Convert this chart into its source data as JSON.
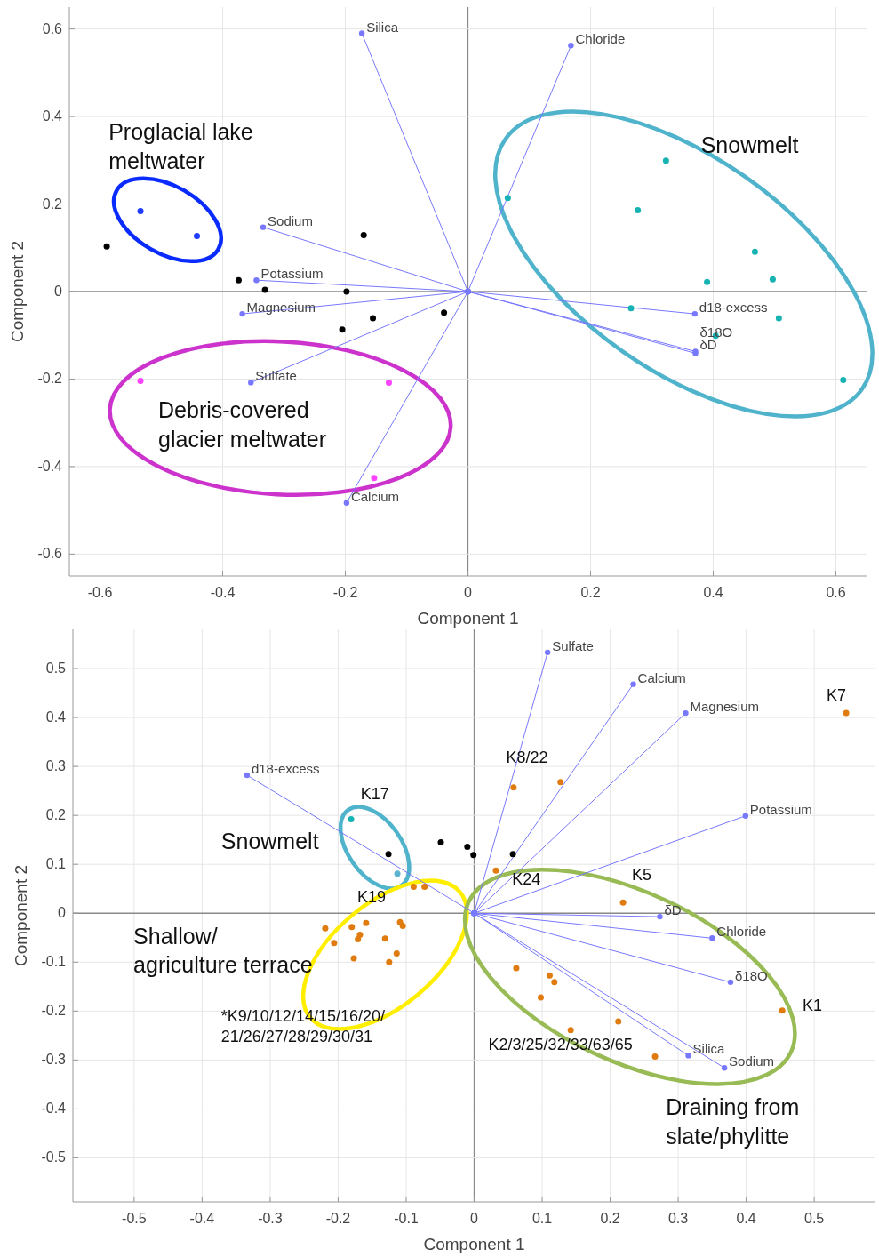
{
  "chart_data": [
    {
      "type": "scatter",
      "xlabel": "Component 1",
      "ylabel": "Component 2",
      "xlim": [
        -0.65,
        0.65
      ],
      "ylim": [
        -0.65,
        0.65
      ],
      "xticks": [
        -0.6,
        -0.4,
        -0.2,
        0,
        0.2,
        0.4,
        0.6
      ],
      "yticks": [
        -0.6,
        -0.4,
        -0.2,
        0,
        0.2,
        0.4,
        0.6
      ],
      "grid": true,
      "marker": "circle",
      "series": [
        {
          "type": "line",
          "name": "Silica",
          "color": "#7878ff",
          "x": [
            0,
            -0.173
          ],
          "values": [
            0,
            0.59
          ]
        },
        {
          "type": "line",
          "name": "Chloride",
          "color": "#7878ff",
          "x": [
            0,
            0.168
          ],
          "values": [
            0,
            0.562
          ]
        },
        {
          "type": "line",
          "name": "Sodium",
          "color": "#7878ff",
          "x": [
            0,
            -0.334
          ],
          "values": [
            0,
            0.147
          ]
        },
        {
          "type": "line",
          "name": "Potassium",
          "color": "#7878ff",
          "x": [
            0,
            -0.345
          ],
          "values": [
            0,
            0.026
          ]
        },
        {
          "type": "line",
          "name": "Magnesium",
          "color": "#7878ff",
          "x": [
            0,
            -0.368
          ],
          "values": [
            0,
            -0.051
          ]
        },
        {
          "type": "line",
          "name": "Sulfate",
          "color": "#7878ff",
          "x": [
            0,
            -0.354
          ],
          "values": [
            0,
            -0.208
          ]
        },
        {
          "type": "line",
          "name": "Calcium",
          "color": "#7878ff",
          "x": [
            0,
            -0.198
          ],
          "values": [
            0,
            -0.483
          ]
        },
        {
          "type": "line",
          "name": "d18-excess",
          "color": "#7878ff",
          "x": [
            0,
            0.37
          ],
          "values": [
            0,
            -0.051
          ]
        },
        {
          "type": "line",
          "name": "δD",
          "color": "#7878ff",
          "x": [
            0,
            0.371
          ],
          "values": [
            0,
            -0.137
          ]
        },
        {
          "type": "line",
          "name": "δ18O",
          "color": "#7878ff",
          "x": [
            0,
            0.371
          ],
          "values": [
            0,
            -0.141
          ]
        },
        {
          "color": "#1f3cff",
          "x": [
            -0.534,
            -0.442
          ],
          "values": [
            0.184,
            0.127
          ]
        },
        {
          "color": "#000000",
          "x": [
            -0.589,
            -0.17,
            -0.374,
            -0.331,
            -0.198,
            -0.155,
            -0.039,
            -0.205
          ],
          "values": [
            0.103,
            0.129,
            0.026,
            0.004,
            0.0,
            -0.061,
            -0.048,
            -0.087
          ]
        },
        {
          "color": "#ff44ff",
          "x": [
            -0.534,
            -0.129,
            -0.153
          ],
          "values": [
            -0.204,
            -0.208,
            -0.426
          ]
        },
        {
          "color": "#17b3b3",
          "x": [
            0.065,
            0.323,
            0.277,
            0.468,
            0.39,
            0.497,
            0.266,
            0.507,
            0.404,
            0.612
          ],
          "values": [
            0.214,
            0.299,
            0.186,
            0.091,
            0.022,
            0.028,
            -0.038,
            -0.061,
            -0.101,
            -0.202
          ]
        }
      ],
      "annotations": [
        "Proglacial lake\nmeltwater",
        "Snowmelt",
        "Debris-covered\nglacier meltwater"
      ]
    },
    {
      "type": "scatter",
      "xlabel": "Component 1",
      "ylabel": "Component 2",
      "xlim": [
        -0.59,
        0.59
      ],
      "ylim": [
        -0.59,
        0.58
      ],
      "xticks": [
        -0.5,
        -0.4,
        -0.3,
        -0.2,
        -0.1,
        0,
        0.1,
        0.2,
        0.3,
        0.4,
        0.5
      ],
      "yticks": [
        -0.5,
        -0.4,
        -0.3,
        -0.2,
        -0.1,
        0,
        0.1,
        0.2,
        0.3,
        0.4,
        0.5
      ],
      "grid": true,
      "marker": "circle",
      "series": [
        {
          "type": "line",
          "name": "Sulfate",
          "color": "#7878ff",
          "x": [
            0,
            0.108
          ],
          "values": [
            0,
            0.533
          ]
        },
        {
          "type": "line",
          "name": "Calcium",
          "color": "#7878ff",
          "x": [
            0,
            0.234
          ],
          "values": [
            0,
            0.468
          ]
        },
        {
          "type": "line",
          "name": "Magnesium",
          "color": "#7878ff",
          "x": [
            0,
            0.311
          ],
          "values": [
            0,
            0.409
          ]
        },
        {
          "type": "line",
          "name": "Potassium",
          "color": "#7878ff",
          "x": [
            0,
            0.399
          ],
          "values": [
            0,
            0.199
          ]
        },
        {
          "type": "line",
          "name": "d18-excess",
          "color": "#7878ff",
          "x": [
            0,
            -0.334
          ],
          "values": [
            0,
            0.282
          ]
        },
        {
          "type": "line",
          "name": "δD",
          "color": "#7878ff",
          "x": [
            0,
            0.273
          ],
          "values": [
            0,
            -0.007
          ]
        },
        {
          "type": "line",
          "name": "Chloride",
          "color": "#7878ff",
          "x": [
            0,
            0.35
          ],
          "values": [
            0,
            -0.051
          ]
        },
        {
          "type": "line",
          "name": "δ18O",
          "color": "#7878ff",
          "x": [
            0,
            0.377
          ],
          "values": [
            0,
            -0.141
          ]
        },
        {
          "type": "line",
          "name": "Silica",
          "color": "#7878ff",
          "x": [
            0,
            0.315
          ],
          "values": [
            0,
            -0.291
          ]
        },
        {
          "type": "line",
          "name": "Sodium",
          "color": "#7878ff",
          "x": [
            0,
            0.368
          ],
          "values": [
            0,
            -0.316
          ]
        },
        {
          "color": "#17b3b3",
          "x": [
            -0.181
          ],
          "values": [
            0.192
          ]
        },
        {
          "color": "#5ab4d0",
          "x": [
            -0.113
          ],
          "values": [
            0.081
          ]
        },
        {
          "color": "#000000",
          "x": [
            -0.126,
            -0.049,
            -0.01,
            -0.001,
            0.057
          ],
          "values": [
            0.121,
            0.145,
            0.136,
            0.119,
            0.121
          ]
        },
        {
          "color": "#e07b10",
          "x": [
            0.547,
            0.058,
            0.127,
            0.032,
            0.219,
            0.453,
            0.062,
            0.111,
            0.118,
            0.098,
            0.212,
            0.142,
            0.266,
            -0.089,
            -0.073,
            -0.219,
            -0.18,
            -0.159,
            -0.109,
            -0.105,
            -0.168,
            -0.171,
            -0.206,
            -0.131,
            -0.177,
            -0.114,
            -0.125
          ],
          "values": [
            0.409,
            0.257,
            0.268,
            0.087,
            0.022,
            -0.199,
            -0.112,
            -0.127,
            -0.141,
            -0.172,
            -0.221,
            -0.239,
            -0.293,
            0.054,
            0.054,
            -0.031,
            -0.028,
            -0.02,
            -0.018,
            -0.026,
            -0.044,
            -0.053,
            -0.061,
            -0.052,
            -0.092,
            -0.082,
            -0.1
          ]
        }
      ],
      "annotations": [
        "K7",
        "K8/22",
        "K17",
        "Snowmelt",
        "K19",
        "K24",
        "K5",
        "K1",
        "Shallow/\nagriculture terrace",
        "*K9/10/12/14/15/16/20/\n21/26/27/28/29/30/31",
        "K2/3/25/32/33/63/65",
        "Draining from\nslate/phylitte"
      ]
    }
  ]
}
